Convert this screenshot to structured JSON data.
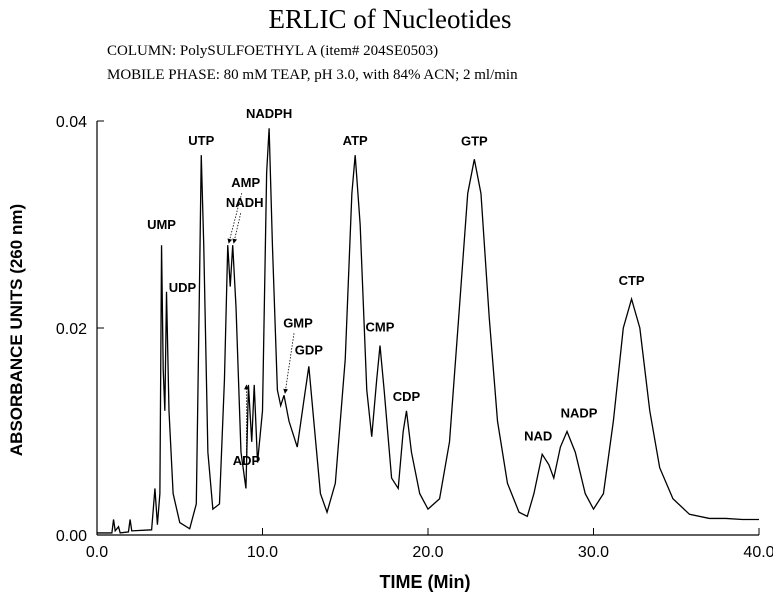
{
  "chart_data": {
    "type": "line",
    "title": "ERLIC of Nucleotides",
    "subtitles": [
      "COLUMN:  PolySULFOETHYL A (item# 204SE0503)",
      "MOBILE PHASE:  80 mM TEAP, pH 3.0, with 84% ACN; 2 ml/min"
    ],
    "x_label": "TIME (Min)",
    "y_label": "ABSORBANCE UNITS (260 nm)",
    "color": "#000000",
    "xlim": [
      0,
      40
    ],
    "ylim": [
      0,
      0.04
    ],
    "xticks": [
      {
        "value": 0,
        "label": "0.0"
      },
      {
        "value": 10,
        "label": "10.0"
      },
      {
        "value": 20,
        "label": "20.0"
      },
      {
        "value": 30,
        "label": "30.0"
      },
      {
        "value": 40,
        "label": "40.0"
      }
    ],
    "yticks": [
      {
        "value": 0,
        "label": "0.00"
      },
      0.02,
      0.04
    ],
    "x": [
      0,
      0.9,
      1.0,
      1.1,
      1.3,
      1.4,
      1.9,
      2.0,
      2.1,
      3.3,
      3.5,
      3.65,
      3.8,
      3.9,
      4.0,
      4.1,
      4.2,
      4.35,
      4.6,
      5.0,
      5.6,
      6.0,
      6.2,
      6.3,
      6.45,
      6.7,
      7.0,
      7.4,
      7.7,
      7.9,
      8.05,
      8.2,
      8.4,
      8.7,
      9.0,
      9.15,
      9.35,
      9.5,
      9.7,
      10.0,
      10.25,
      10.4,
      10.6,
      10.9,
      11.1,
      11.3,
      11.6,
      12.1,
      12.5,
      12.8,
      13.1,
      13.5,
      13.9,
      14.4,
      15.0,
      15.4,
      15.6,
      15.9,
      16.3,
      16.6,
      16.9,
      17.1,
      17.35,
      17.8,
      18.2,
      18.5,
      18.7,
      19.0,
      19.5,
      20.0,
      20.7,
      21.3,
      21.9,
      22.4,
      22.8,
      23.2,
      23.7,
      24.2,
      24.8,
      25.5,
      26.0,
      26.4,
      26.9,
      27.3,
      27.6,
      28.0,
      28.4,
      28.9,
      29.5,
      30.0,
      30.6,
      31.2,
      31.8,
      32.3,
      32.8,
      33.4,
      34.0,
      34.8,
      35.8,
      37.0,
      38.0,
      39.0,
      40.0
    ],
    "values": [
      0.0002,
      0.0002,
      0.0015,
      0.0004,
      0.0008,
      0.0002,
      0.0003,
      0.0015,
      0.0004,
      0.0005,
      0.0045,
      0.001,
      0.004,
      0.028,
      0.016,
      0.012,
      0.0235,
      0.012,
      0.004,
      0.0012,
      0.0006,
      0.003,
      0.025,
      0.0367,
      0.028,
      0.008,
      0.0025,
      0.003,
      0.015,
      0.028,
      0.024,
      0.028,
      0.022,
      0.008,
      0.0045,
      0.0145,
      0.009,
      0.0145,
      0.007,
      0.012,
      0.035,
      0.0393,
      0.028,
      0.014,
      0.0125,
      0.0135,
      0.011,
      0.0085,
      0.013,
      0.0163,
      0.011,
      0.004,
      0.0022,
      0.005,
      0.017,
      0.033,
      0.0367,
      0.03,
      0.014,
      0.0095,
      0.015,
      0.0183,
      0.014,
      0.0055,
      0.0045,
      0.01,
      0.012,
      0.008,
      0.004,
      0.0025,
      0.0035,
      0.009,
      0.022,
      0.033,
      0.0363,
      0.033,
      0.021,
      0.011,
      0.005,
      0.0022,
      0.0018,
      0.004,
      0.0078,
      0.0068,
      0.0055,
      0.0085,
      0.01,
      0.008,
      0.004,
      0.0025,
      0.004,
      0.011,
      0.02,
      0.0228,
      0.02,
      0.012,
      0.0065,
      0.0035,
      0.002,
      0.0016,
      0.0016,
      0.0015,
      0.0015
    ],
    "annotations": [
      {
        "label": "UMP",
        "x": 3.9,
        "y": 0.028
      },
      {
        "label": "UDP",
        "x": 4.2,
        "y": 0.0235
      },
      {
        "label": "UTP",
        "x": 6.3,
        "y": 0.0367
      },
      {
        "label": "AMP",
        "x": 7.9,
        "y": 0.028
      },
      {
        "label": "NADH",
        "x": 8.2,
        "y": 0.028
      },
      {
        "label": "ADP",
        "x": 9.15,
        "y": 0.0145
      },
      {
        "label": "NADPH",
        "x": 10.4,
        "y": 0.0393
      },
      {
        "label": "GMP",
        "x": 11.3,
        "y": 0.0135
      },
      {
        "label": "GDP",
        "x": 12.8,
        "y": 0.0163
      },
      {
        "label": "ATP",
        "x": 15.6,
        "y": 0.0367
      },
      {
        "label": "CMP",
        "x": 17.1,
        "y": 0.0183
      },
      {
        "label": "CDP",
        "x": 18.7,
        "y": 0.012
      },
      {
        "label": "GTP",
        "x": 22.8,
        "y": 0.0363
      },
      {
        "label": "NAD",
        "x": 26.9,
        "y": 0.0078
      },
      {
        "label": "NADP",
        "x": 28.4,
        "y": 0.01
      },
      {
        "label": "CTP",
        "x": 32.3,
        "y": 0.0228
      }
    ]
  }
}
